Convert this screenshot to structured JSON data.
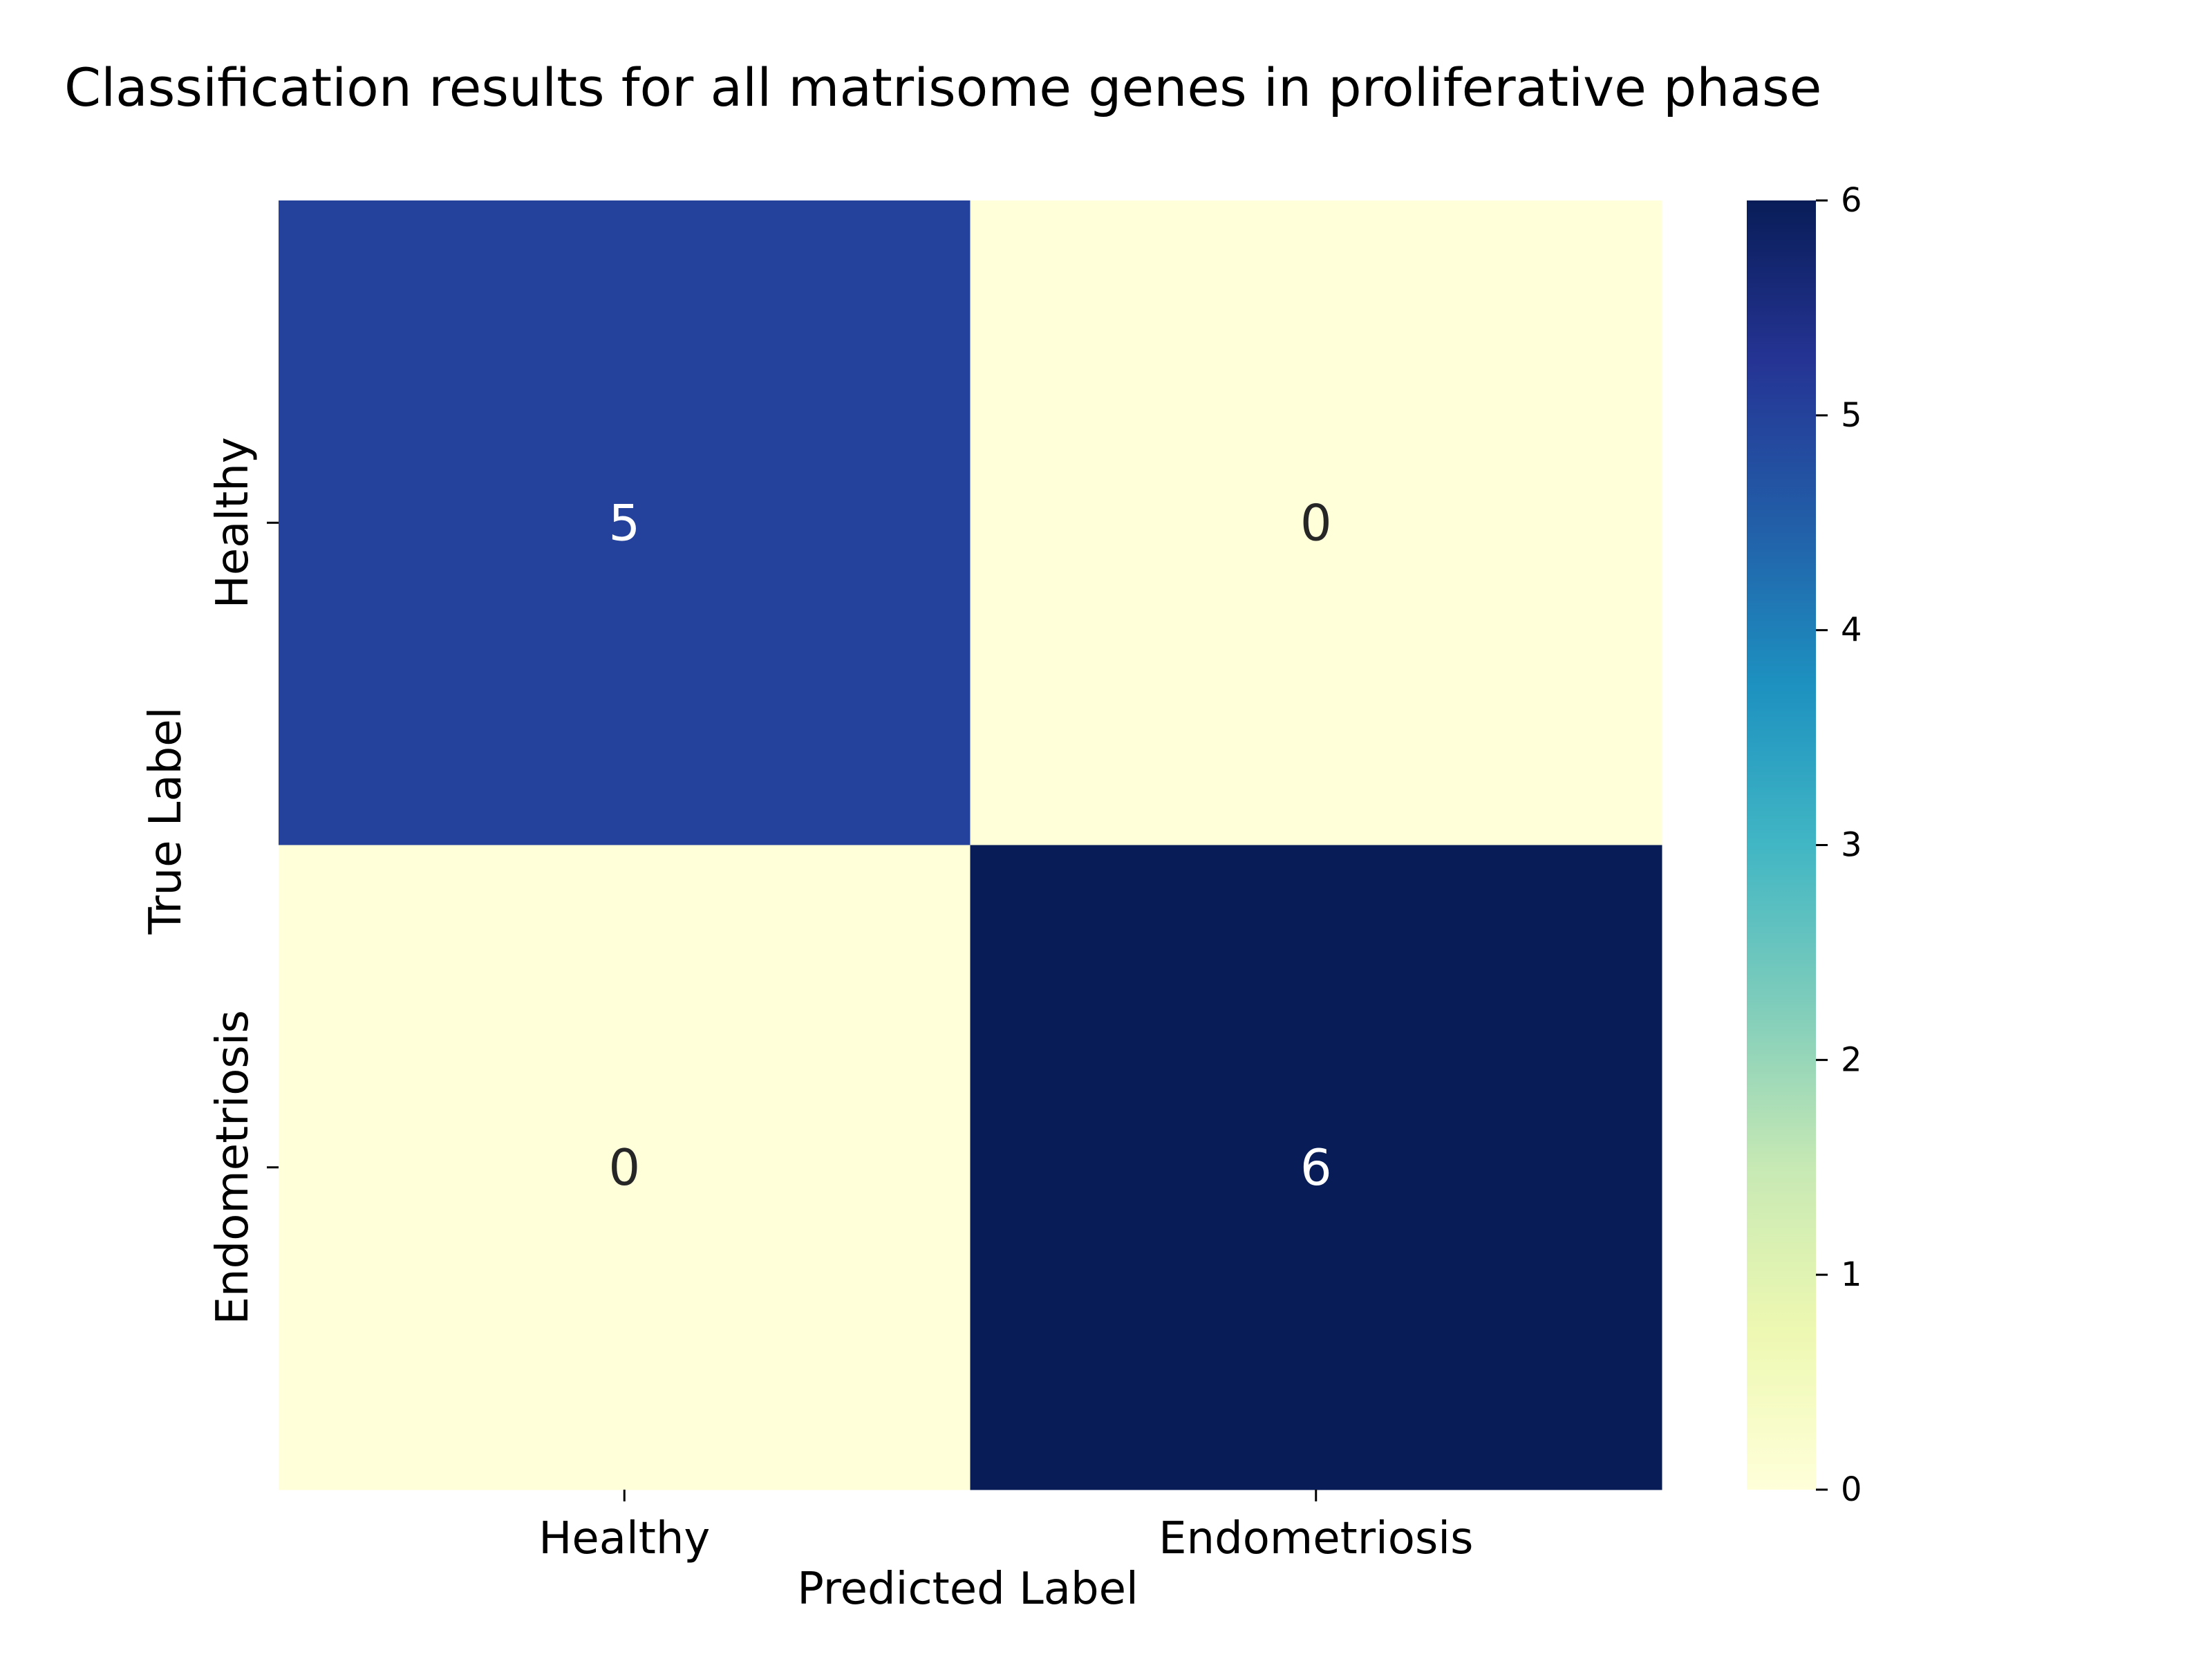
{
  "chart_data": {
    "type": "heatmap",
    "title": "Classification results for all matrisome genes in proliferative phase",
    "xlabel": "Predicted Label",
    "ylabel": "True Label",
    "x_categories": [
      "Healthy",
      "Endometriosis"
    ],
    "y_categories": [
      "Healthy",
      "Endometriosis"
    ],
    "values": [
      [
        5,
        0
      ],
      [
        0,
        6
      ]
    ],
    "annotations": true,
    "colormap": "YlGnBu",
    "colorbar": {
      "range": [
        0,
        6
      ],
      "ticks": [
        "0",
        "1",
        "2",
        "3",
        "4",
        "5",
        "6"
      ],
      "stops": [
        "#ffffd9",
        "#edf8b1",
        "#c7e9b4",
        "#7fcdbb",
        "#41b6c4",
        "#1d91c0",
        "#225ea8",
        "#253494",
        "#081d58"
      ]
    },
    "annotation_colors": {
      "light": "#ffffff",
      "dark": "#262626"
    }
  }
}
